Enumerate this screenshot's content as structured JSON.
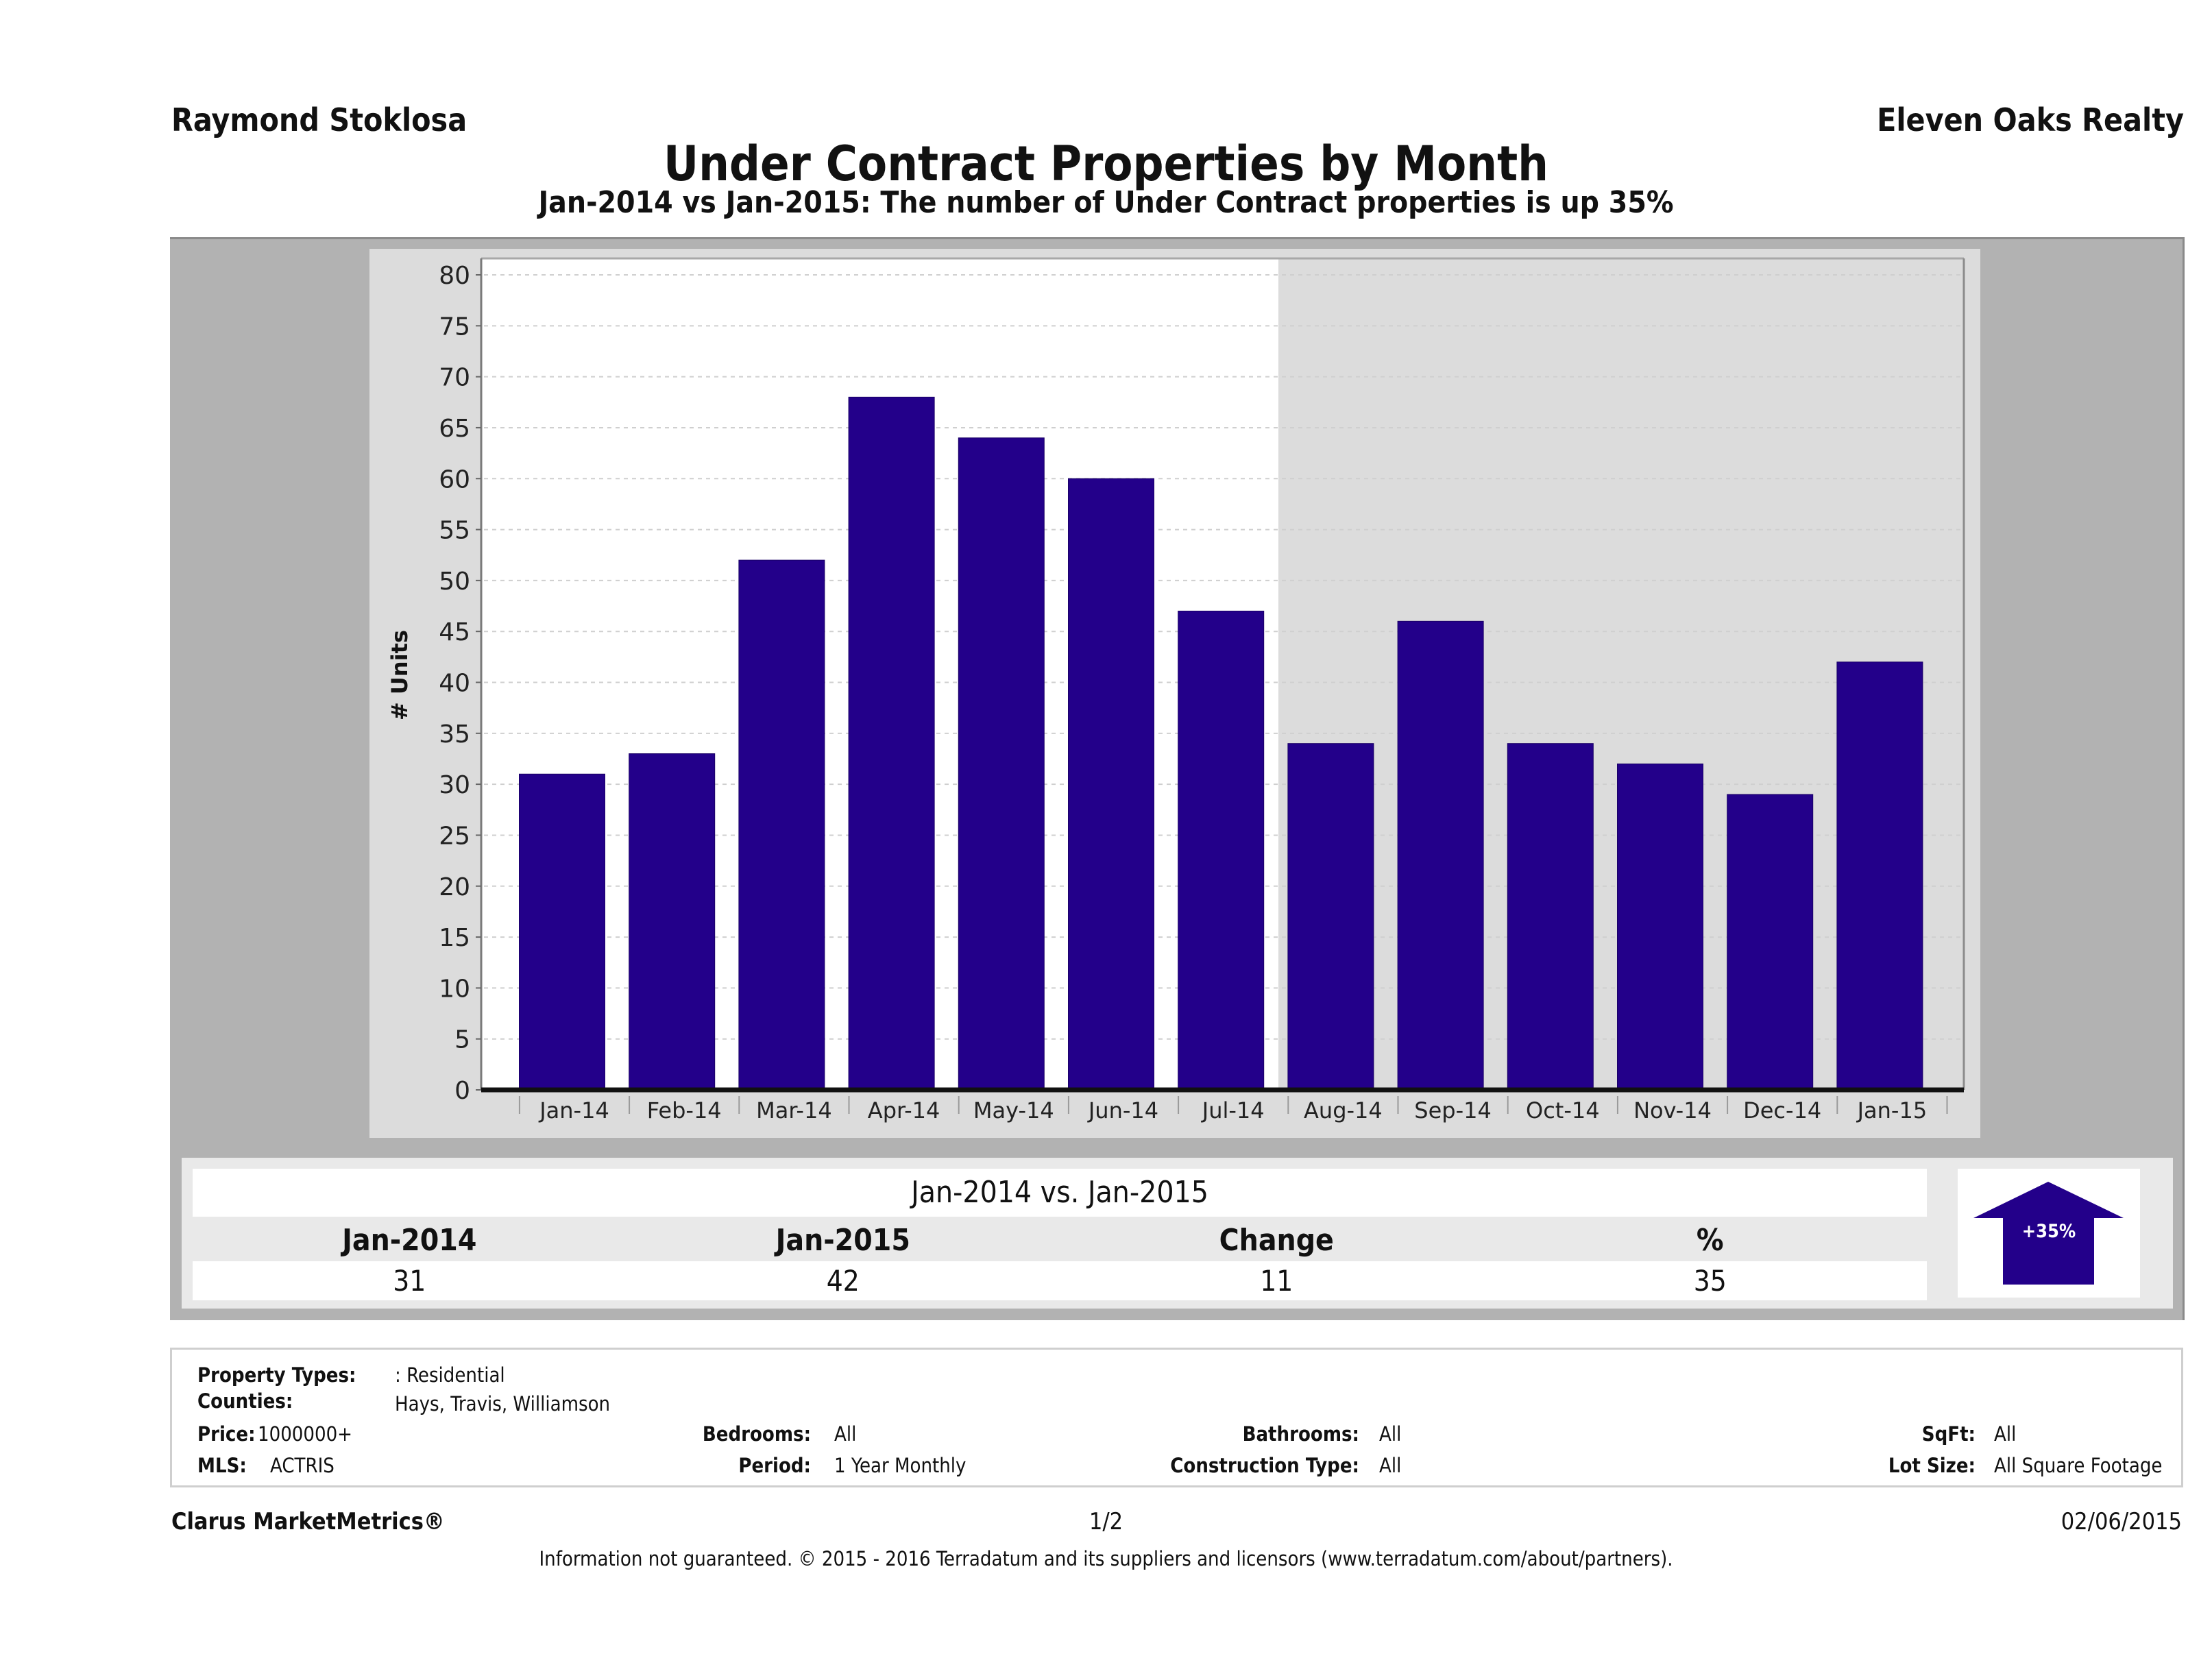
{
  "header": {
    "agent_name": "Raymond Stoklosa",
    "brokerage": "Eleven Oaks Realty",
    "title": "Under Contract Properties by Month",
    "subtitle": "Jan-2014 vs Jan-2015: The number of Under Contract  properties is up 35%"
  },
  "colors": {
    "bar": "#23008a",
    "panel_outer": "#b2b2b2",
    "panel_inner": "#dcdcdc",
    "plot_bg": "#ffffff"
  },
  "chart_data": {
    "type": "bar",
    "title": "Under Contract Properties by Month",
    "xlabel": "",
    "ylabel": "# Units",
    "ylim": [
      0,
      80
    ],
    "yticks": [
      0,
      5,
      10,
      15,
      20,
      25,
      30,
      35,
      40,
      45,
      50,
      55,
      60,
      65,
      70,
      75,
      80
    ],
    "grid": true,
    "legend": "none",
    "categories": [
      "Jan-14",
      "Feb-14",
      "Mar-14",
      "Apr-14",
      "May-14",
      "Jun-14",
      "Jul-14",
      "Aug-14",
      "Sep-14",
      "Oct-14",
      "Nov-14",
      "Dec-14",
      "Jan-15"
    ],
    "values": [
      31,
      33,
      52,
      68,
      64,
      60,
      47,
      34,
      46,
      34,
      32,
      29,
      42
    ]
  },
  "summary": {
    "title": "Jan-2014 vs. Jan-2015",
    "headers": [
      "Jan-2014",
      "Jan-2015",
      "Change",
      "%"
    ],
    "values": [
      "31",
      "42",
      "11",
      "35"
    ],
    "badge": "+35%",
    "direction": "up"
  },
  "properties": {
    "property_types_label": "Property Types:",
    "property_types_value": ": Residential",
    "counties_label": "Counties:",
    "counties_value": "Hays, Travis, Williamson",
    "price_label": "Price:",
    "price_value": "1000000+",
    "mls_label": "MLS:",
    "mls_value": "ACTRIS",
    "bedrooms_label": "Bedrooms:",
    "bedrooms_value": "All",
    "period_label": "Period:",
    "period_value": "1 Year Monthly",
    "bathrooms_label": "Bathrooms:",
    "bathrooms_value": "All",
    "construction_label": "Construction Type:",
    "construction_value": "All",
    "sqft_label": "SqFt:",
    "sqft_value": "All",
    "lot_size_label": "Lot Size:",
    "lot_size_value": "All Square Footage"
  },
  "footer": {
    "product": "Clarus MarketMetrics®",
    "page": "1/2",
    "date": "02/06/2015",
    "disclaimer": "Information not guaranteed. © 2015 - 2016 Terradatum and its suppliers and licensors (www.terradatum.com/about/partners)."
  }
}
